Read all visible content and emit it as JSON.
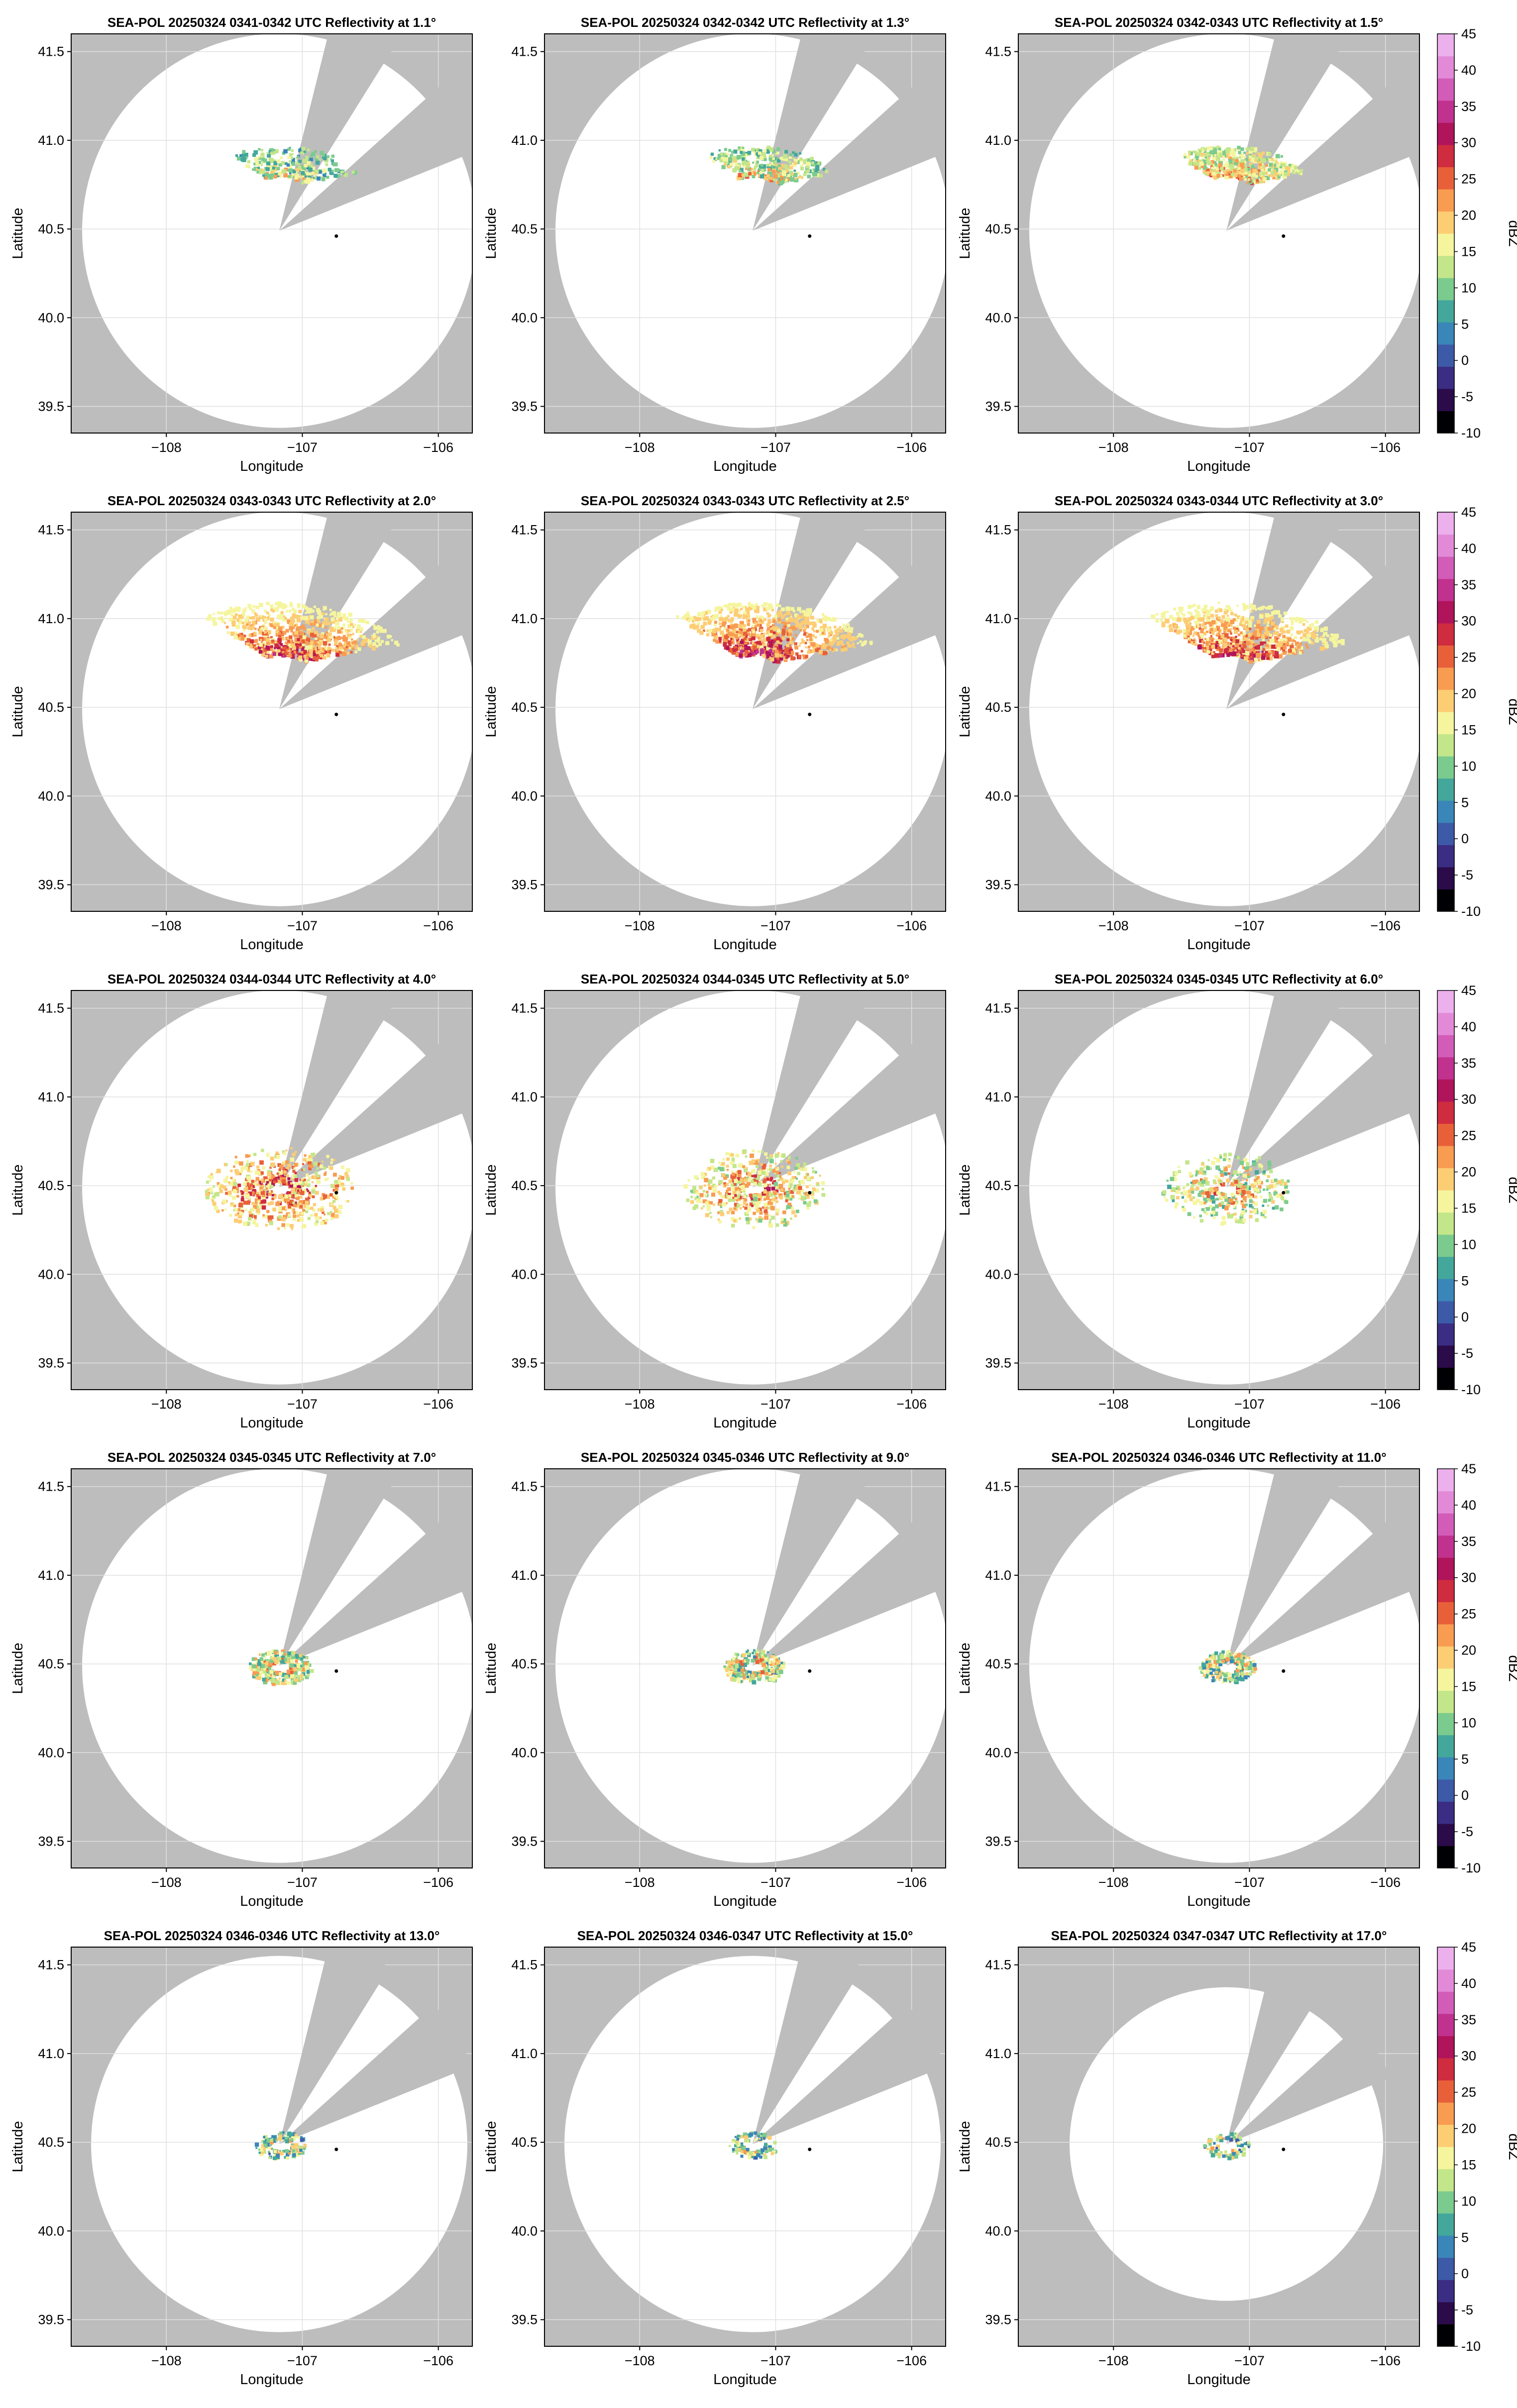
{
  "figure": {
    "layout": "5x3 grid of radar PPI panels"
  },
  "colorbar": {
    "label": "dBZ",
    "ticks": [
      45,
      40,
      35,
      30,
      25,
      20,
      15,
      10,
      5,
      0,
      -5,
      -10
    ],
    "range": [
      -10,
      45
    ],
    "colors": [
      "#000004",
      "#2b0b4a",
      "#3b2d83",
      "#3d5aa8",
      "#3a86b8",
      "#43a79b",
      "#7ccb8e",
      "#c3e68a",
      "#f5f59e",
      "#fdcd74",
      "#f89c52",
      "#e8603a",
      "#cf2c3f",
      "#b0145b",
      "#c0328e",
      "#d25cb8",
      "#e28ad8",
      "#ecb0ec"
    ]
  },
  "axes": {
    "xlabel": "Longitude",
    "ylabel": "Latitude",
    "xticks": [
      "−108",
      "−107",
      "−106"
    ],
    "xtick_values": [
      -108,
      -107,
      -106
    ],
    "yticks": [
      "41.5",
      "41.0",
      "40.5",
      "40.0",
      "39.5"
    ],
    "ytick_values": [
      41.5,
      41.0,
      40.5,
      40.0,
      39.5
    ],
    "xlim": [
      -108.7,
      -105.75
    ],
    "ylim": [
      39.35,
      41.6
    ]
  },
  "radar": {
    "lon": -107.17,
    "lat": 40.49,
    "blocked_sector": [
      "N-NE wedge",
      "NE wedge"
    ]
  },
  "site_marker": {
    "lon": -106.75,
    "lat": 40.46
  },
  "colors": {
    "background": "#bdbdbd",
    "coverage": "#ffffff",
    "grid": "#e0e0e0"
  },
  "panels": [
    {
      "title": "SEA-POL 20250324 0341-0342 UTC Reflectivity at 1.1°",
      "elevation": 1.1,
      "echo_level": 0.3
    },
    {
      "title": "SEA-POL 20250324 0342-0342 UTC Reflectivity at 1.3°",
      "elevation": 1.3,
      "echo_level": 0.4
    },
    {
      "title": "SEA-POL 20250324 0342-0343 UTC Reflectivity at 1.5°",
      "elevation": 1.5,
      "echo_level": 0.55
    },
    {
      "title": "SEA-POL 20250324 0343-0343 UTC Reflectivity at 2.0°",
      "elevation": 2.0,
      "echo_level": 0.9
    },
    {
      "title": "SEA-POL 20250324 0343-0343 UTC Reflectivity at 2.5°",
      "elevation": 2.5,
      "echo_level": 0.95
    },
    {
      "title": "SEA-POL 20250324 0343-0344 UTC Reflectivity at 3.0°",
      "elevation": 3.0,
      "echo_level": 0.9
    },
    {
      "title": "SEA-POL 20250324 0344-0344 UTC Reflectivity at 4.0°",
      "elevation": 4.0,
      "echo_level": 0.75
    },
    {
      "title": "SEA-POL 20250324 0344-0345 UTC Reflectivity at 5.0°",
      "elevation": 5.0,
      "echo_level": 0.6
    },
    {
      "title": "SEA-POL 20250324 0345-0345 UTC Reflectivity at 6.0°",
      "elevation": 6.0,
      "echo_level": 0.45
    },
    {
      "title": "SEA-POL 20250324 0345-0345 UTC Reflectivity at 7.0°",
      "elevation": 7.0,
      "echo_level": 0.35
    },
    {
      "title": "SEA-POL 20250324 0345-0346 UTC Reflectivity at 9.0°",
      "elevation": 9.0,
      "echo_level": 0.3
    },
    {
      "title": "SEA-POL 20250324 0346-0346 UTC Reflectivity at 11.0°",
      "elevation": 11.0,
      "echo_level": 0.25
    },
    {
      "title": "SEA-POL 20250324 0346-0346 UTC Reflectivity at 13.0°",
      "elevation": 13.0,
      "echo_level": 0.15
    },
    {
      "title": "SEA-POL 20250324 0346-0347 UTC Reflectivity at 15.0°",
      "elevation": 15.0,
      "echo_level": 0.12
    },
    {
      "title": "SEA-POL 20250324 0347-0347 UTC Reflectivity at 17.0°",
      "elevation": 17.0,
      "echo_level": 0.1
    }
  ],
  "chart_data": {
    "type": "heatmap",
    "xlabel": "Longitude",
    "ylabel": "Latitude",
    "xlim": [
      -108.7,
      -105.75
    ],
    "ylim": [
      39.35,
      41.6
    ],
    "colorbar_label": "dBZ",
    "colorbar_range": [
      -10,
      45
    ],
    "series": [
      {
        "elevation_deg": 1.1
      },
      {
        "elevation_deg": 1.3
      },
      {
        "elevation_deg": 1.5
      },
      {
        "elevation_deg": 2.0
      },
      {
        "elevation_deg": 2.5
      },
      {
        "elevation_deg": 3.0
      },
      {
        "elevation_deg": 4.0
      },
      {
        "elevation_deg": 5.0
      },
      {
        "elevation_deg": 6.0
      },
      {
        "elevation_deg": 7.0
      },
      {
        "elevation_deg": 9.0
      },
      {
        "elevation_deg": 11.0
      },
      {
        "elevation_deg": 13.0
      },
      {
        "elevation_deg": 15.0
      },
      {
        "elevation_deg": 17.0
      }
    ]
  }
}
